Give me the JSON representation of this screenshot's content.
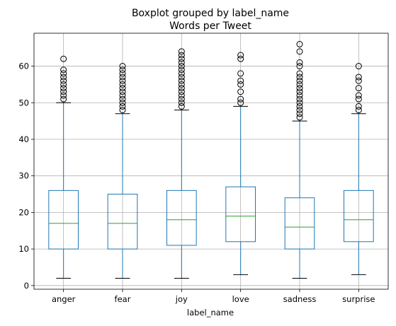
{
  "chart_data": {
    "type": "boxplot",
    "suptitle": "Boxplot grouped by label_name",
    "title": "Words per Tweet",
    "xlabel": "label_name",
    "ylabel": "",
    "ylim": [
      -1,
      69
    ],
    "yticks": [
      0,
      10,
      20,
      30,
      40,
      50,
      60
    ],
    "grid": true,
    "colors": {
      "box": "#1f77b4",
      "median": "#2ca02c",
      "cap": "#000000",
      "flier": "#000000",
      "grid": "#b0b0b0"
    },
    "categories": [
      "anger",
      "fear",
      "joy",
      "love",
      "sadness",
      "surprise"
    ],
    "boxes": [
      {
        "name": "anger",
        "whislo": 2,
        "q1": 10,
        "med": 17,
        "q3": 26,
        "whishi": 50,
        "fliers": [
          51,
          52,
          53,
          54,
          55,
          56,
          57,
          58,
          59,
          62
        ]
      },
      {
        "name": "fear",
        "whislo": 2,
        "q1": 10,
        "med": 17,
        "q3": 25,
        "whishi": 47,
        "fliers": [
          48,
          49,
          50,
          51,
          52,
          53,
          54,
          55,
          56,
          57,
          58,
          59,
          60
        ]
      },
      {
        "name": "joy",
        "whislo": 2,
        "q1": 11,
        "med": 18,
        "q3": 26,
        "whishi": 48,
        "fliers": [
          49,
          50,
          51,
          52,
          53,
          54,
          55,
          56,
          57,
          58,
          59,
          60,
          61,
          62,
          63,
          64
        ]
      },
      {
        "name": "love",
        "whislo": 3,
        "q1": 12,
        "med": 19,
        "q3": 27,
        "whishi": 49,
        "fliers": [
          50,
          51,
          53,
          55,
          56,
          58,
          62,
          63
        ]
      },
      {
        "name": "sadness",
        "whislo": 2,
        "q1": 10,
        "med": 16,
        "q3": 24,
        "whishi": 45,
        "fliers": [
          46,
          47,
          48,
          49,
          50,
          51,
          52,
          53,
          54,
          55,
          56,
          57,
          58,
          60,
          61,
          64,
          66
        ]
      },
      {
        "name": "surprise",
        "whislo": 3,
        "q1": 12,
        "med": 18,
        "q3": 26,
        "whishi": 47,
        "fliers": [
          48,
          49,
          51,
          52,
          54,
          56,
          57,
          60
        ]
      }
    ]
  }
}
